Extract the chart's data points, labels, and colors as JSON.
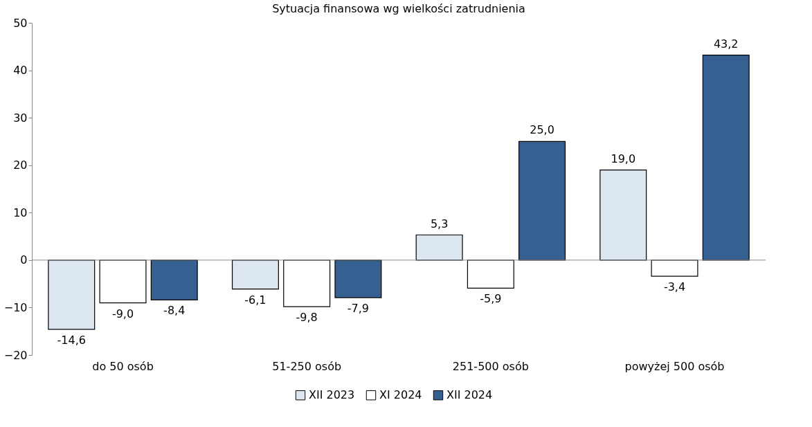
{
  "chart_data": {
    "type": "bar",
    "title": "Sytuacja finansowa wg wielkości zatrudnienia",
    "categories": [
      "do 50 osób",
      "51-250 osób",
      "251-500 osób",
      "powyżej 500 osób"
    ],
    "series": [
      {
        "name": "XII 2023",
        "color": "#dce6f1",
        "values": [
          -14.6,
          -6.1,
          5.3,
          19.0
        ],
        "value_labels": [
          "-14,6",
          "-6,1",
          "5,3",
          "19,0"
        ]
      },
      {
        "name": "XI 2024",
        "color": "#ffffff",
        "values": [
          -9.0,
          -9.8,
          -5.9,
          -3.4
        ],
        "value_labels": [
          "-9,0",
          "-9,8",
          "-5,9",
          "-3,4"
        ]
      },
      {
        "name": "XII 2024",
        "color": "#366092",
        "values": [
          -8.4,
          -7.9,
          25.0,
          43.2
        ],
        "value_labels": [
          "-8,4",
          "-7,9",
          "25,0",
          "43,2"
        ]
      }
    ],
    "ylim": [
      -20,
      50
    ],
    "yticks": [
      -20,
      -10,
      0,
      10,
      20,
      30,
      40,
      50
    ],
    "legend": "bottom"
  }
}
